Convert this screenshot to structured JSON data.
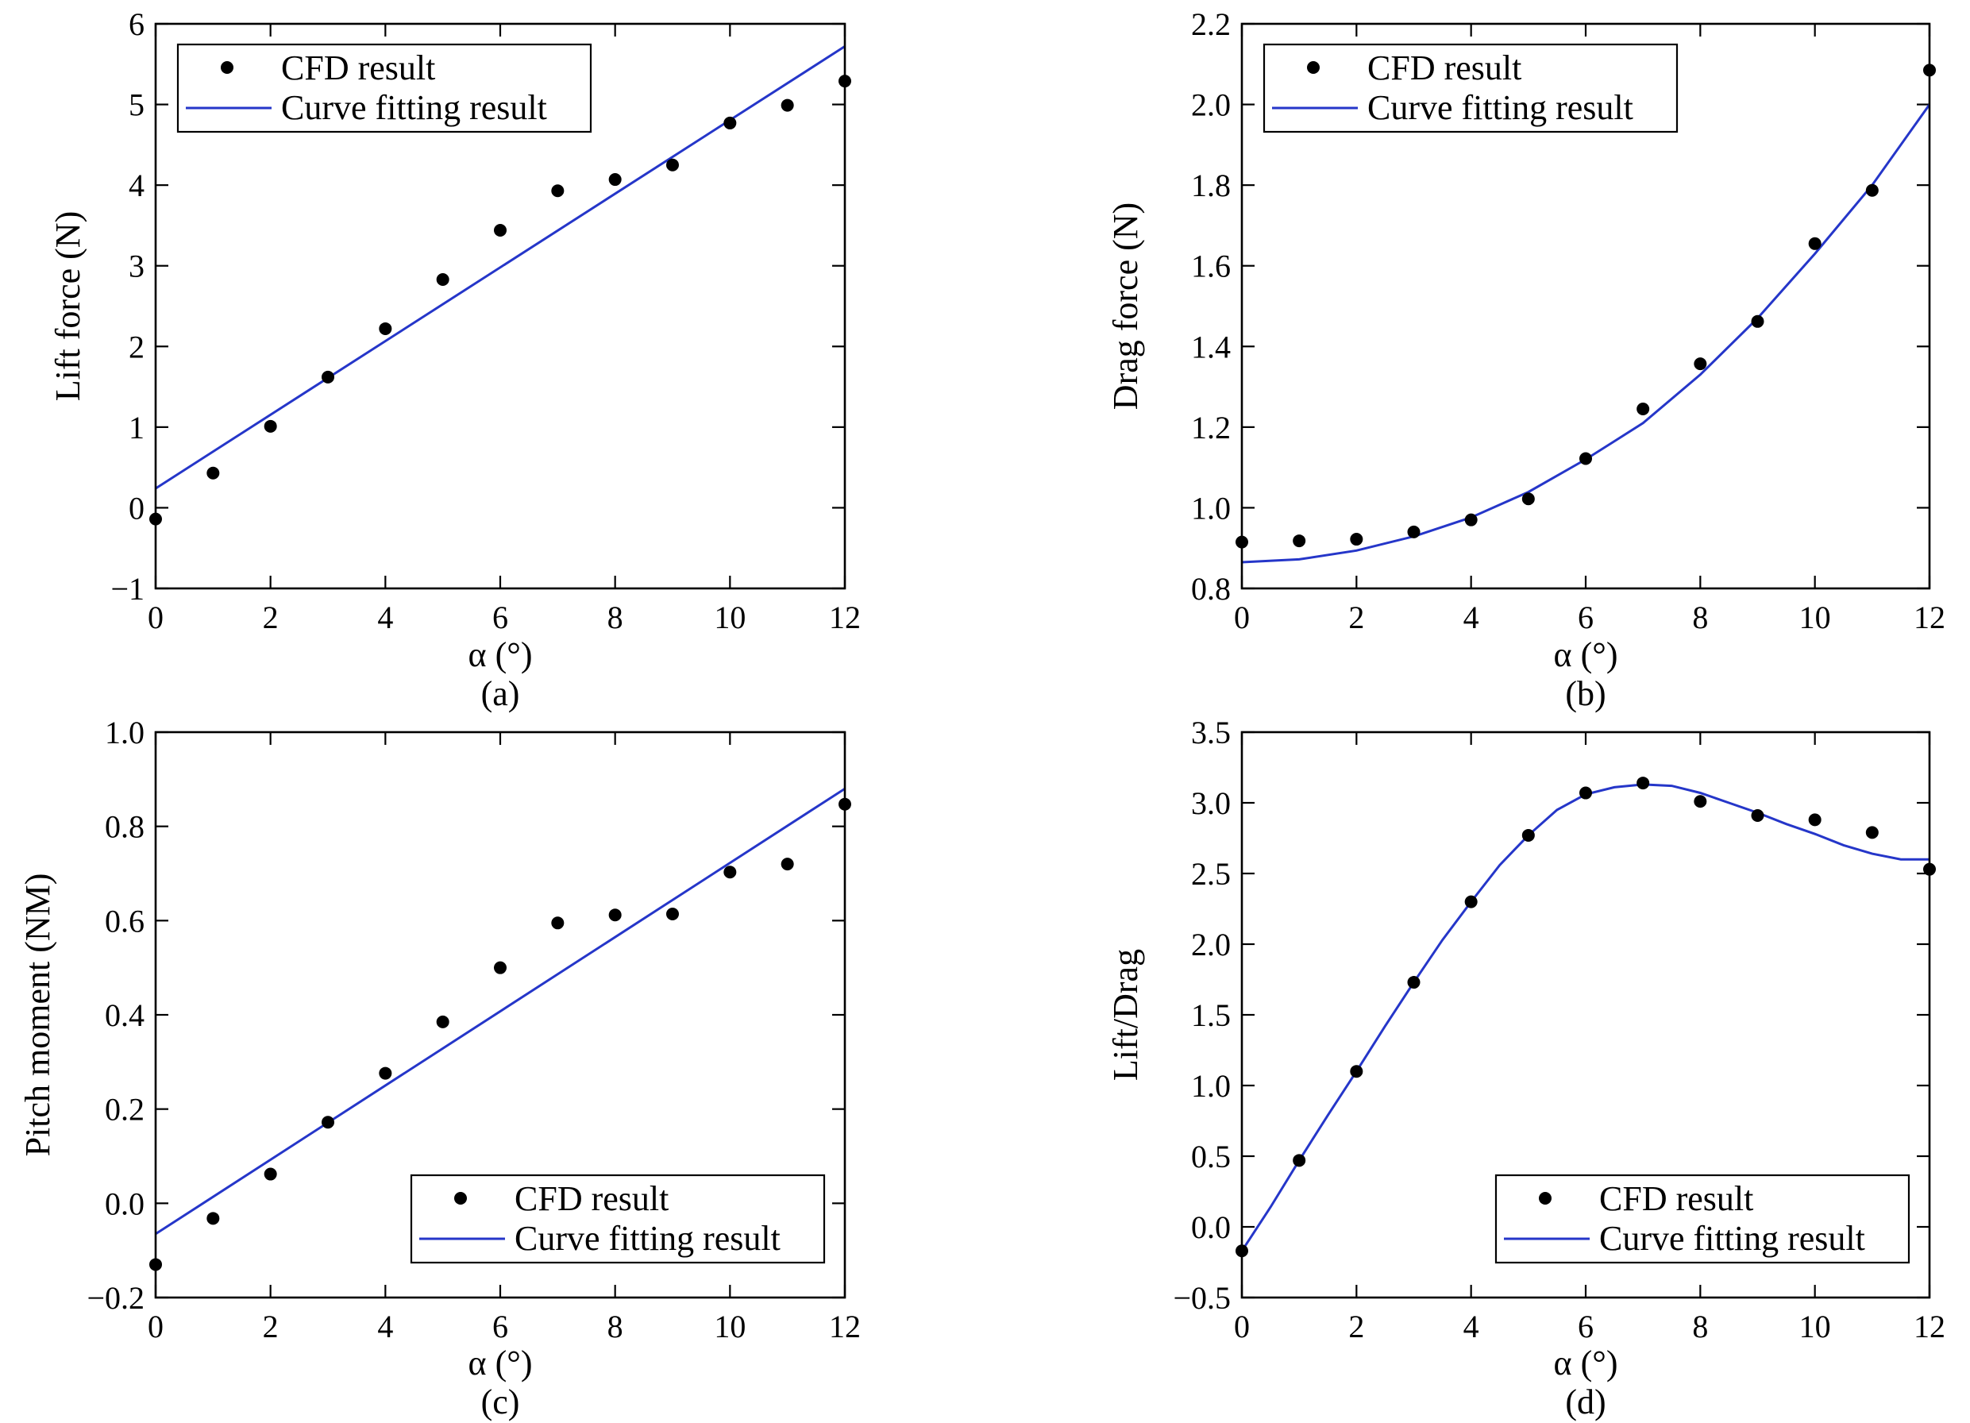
{
  "figure": {
    "legend": {
      "cfd_label": "CFD result",
      "fit_label": "Curve fitting result"
    },
    "colors": {
      "points": "#000000",
      "fit_line": "#2536c9",
      "axes": "#000000"
    }
  },
  "chart_data": [
    {
      "id": "a",
      "type": "scatter",
      "caption": "(a)",
      "xlabel": "α (°)",
      "ylabel": "Lift force (N)",
      "xlim": [
        0,
        12
      ],
      "ylim": [
        -1,
        6
      ],
      "xticks": [
        0,
        2,
        4,
        6,
        8,
        10,
        12
      ],
      "yticks": [
        -1,
        0,
        1,
        2,
        3,
        4,
        5,
        6
      ],
      "ytick_labels": [
        "−1",
        "0",
        "1",
        "2",
        "3",
        "4",
        "5",
        "6"
      ],
      "legend_position": "top-left",
      "series": [
        {
          "name": "CFD result",
          "kind": "points",
          "x": [
            0,
            1,
            2,
            3,
            4,
            5,
            6,
            7,
            8,
            9,
            10,
            11,
            12
          ],
          "y": [
            -0.14,
            0.43,
            1.01,
            1.62,
            2.22,
            2.83,
            3.44,
            3.93,
            4.07,
            4.25,
            4.77,
            4.99,
            5.29
          ]
        },
        {
          "name": "Curve fitting result",
          "kind": "line",
          "x": [
            0,
            12
          ],
          "y": [
            0.24,
            5.72
          ]
        }
      ]
    },
    {
      "id": "b",
      "type": "scatter",
      "caption": "(b)",
      "xlabel": "α (°)",
      "ylabel": "Drag force (N)",
      "xlim": [
        0,
        12
      ],
      "ylim": [
        0.8,
        2.2
      ],
      "xticks": [
        0,
        2,
        4,
        6,
        8,
        10,
        12
      ],
      "yticks": [
        0.8,
        1.0,
        1.2,
        1.4,
        1.6,
        1.8,
        2.0,
        2.2
      ],
      "ytick_labels": [
        "0.8",
        "1.0",
        "1.2",
        "1.4",
        "1.6",
        "1.8",
        "2.0",
        "2.2"
      ],
      "legend_position": "top-left",
      "series": [
        {
          "name": "CFD result",
          "kind": "points",
          "x": [
            0,
            1,
            2,
            3,
            4,
            5,
            6,
            7,
            8,
            9,
            10,
            11,
            12
          ],
          "y": [
            0.915,
            0.918,
            0.922,
            0.94,
            0.97,
            1.022,
            1.122,
            1.245,
            1.357,
            1.462,
            1.655,
            1.787,
            2.085
          ]
        },
        {
          "name": "Curve fitting result",
          "kind": "line",
          "x": [
            0,
            1,
            2,
            3,
            4,
            5,
            6,
            7,
            8,
            9,
            10,
            11,
            12
          ],
          "y": [
            0.865,
            0.872,
            0.894,
            0.929,
            0.976,
            1.039,
            1.12,
            1.21,
            1.33,
            1.47,
            1.63,
            1.8,
            2.0
          ]
        }
      ]
    },
    {
      "id": "c",
      "type": "scatter",
      "caption": "(c)",
      "xlabel": "α (°)",
      "ylabel": "Pitch moment (NM)",
      "xlim": [
        0,
        12
      ],
      "ylim": [
        -0.2,
        1.0
      ],
      "xticks": [
        0,
        2,
        4,
        6,
        8,
        10,
        12
      ],
      "yticks": [
        -0.2,
        0.0,
        0.2,
        0.4,
        0.6,
        0.8,
        1.0
      ],
      "ytick_labels": [
        "−0.2",
        "0.0",
        "0.2",
        "0.4",
        "0.6",
        "0.8",
        "1.0"
      ],
      "legend_position": "bottom-right",
      "series": [
        {
          "name": "CFD result",
          "kind": "points",
          "x": [
            0,
            1,
            2,
            3,
            4,
            5,
            6,
            7,
            8,
            9,
            10,
            11,
            12
          ],
          "y": [
            -0.13,
            -0.032,
            0.062,
            0.172,
            0.276,
            0.385,
            0.5,
            0.595,
            0.612,
            0.614,
            0.703,
            0.72,
            0.847
          ]
        },
        {
          "name": "Curve fitting result",
          "kind": "line",
          "x": [
            0,
            12
          ],
          "y": [
            -0.065,
            0.88
          ]
        }
      ]
    },
    {
      "id": "d",
      "type": "scatter",
      "caption": "(d)",
      "xlabel": "α (°)",
      "ylabel": "Lift/Drag",
      "xlim": [
        0,
        12
      ],
      "ylim": [
        -0.5,
        3.5
      ],
      "xticks": [
        0,
        2,
        4,
        6,
        8,
        10,
        12
      ],
      "yticks": [
        -0.5,
        0.0,
        0.5,
        1.0,
        1.5,
        2.0,
        2.5,
        3.0,
        3.5
      ],
      "ytick_labels": [
        "−0.5",
        "0.0",
        "0.5",
        "1.0",
        "1.5",
        "2.0",
        "2.5",
        "3.0",
        "3.5"
      ],
      "legend_position": "bottom-right",
      "series": [
        {
          "name": "CFD result",
          "kind": "points",
          "x": [
            0,
            1,
            2,
            3,
            4,
            5,
            6,
            7,
            8,
            9,
            10,
            11,
            12
          ],
          "y": [
            -0.17,
            0.47,
            1.1,
            1.73,
            2.3,
            2.77,
            3.07,
            3.14,
            3.01,
            2.91,
            2.88,
            2.79,
            2.53
          ]
        },
        {
          "name": "Curve fitting result",
          "kind": "line",
          "x": [
            0,
            0.5,
            1,
            1.5,
            2,
            2.5,
            3,
            3.5,
            4,
            4.5,
            5,
            5.5,
            6,
            6.5,
            7,
            7.5,
            8,
            8.5,
            9,
            9.5,
            10,
            10.5,
            11,
            11.5,
            12
          ],
          "y": [
            -0.17,
            0.14,
            0.47,
            0.79,
            1.1,
            1.42,
            1.73,
            2.03,
            2.3,
            2.56,
            2.77,
            2.95,
            3.06,
            3.11,
            3.13,
            3.12,
            3.07,
            3.0,
            2.93,
            2.85,
            2.78,
            2.7,
            2.64,
            2.6,
            2.6
          ]
        }
      ]
    }
  ]
}
